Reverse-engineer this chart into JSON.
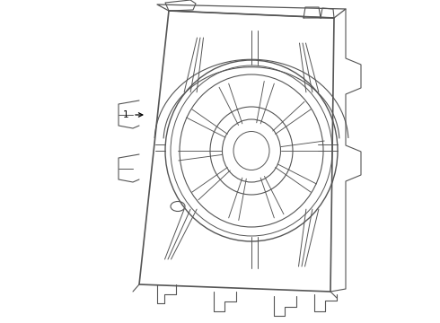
{
  "background_color": "#ffffff",
  "line_color": "#555555",
  "line_width": 0.8,
  "fig_width": 4.9,
  "fig_height": 3.6,
  "dpi": 100
}
